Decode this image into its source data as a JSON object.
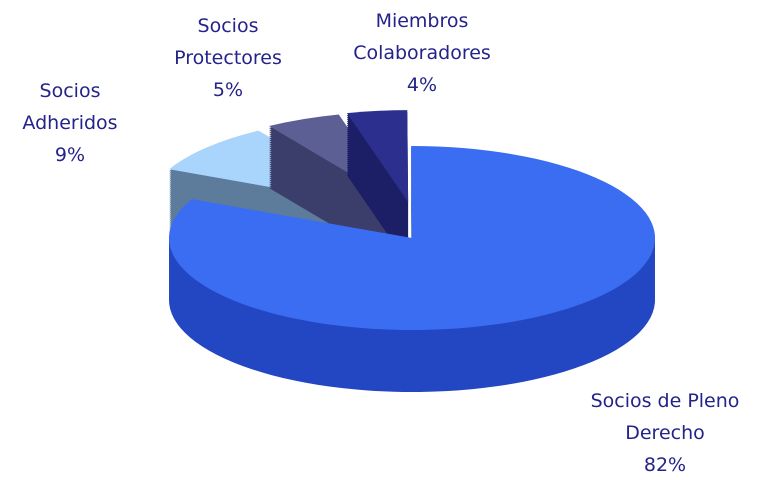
{
  "chart_data": {
    "type": "pie",
    "categories": [
      "Socios Adheridos",
      "Socios Protectores",
      "Miembros Colaboradores",
      "Socios de Pleno Derecho"
    ],
    "values": [
      9,
      5,
      4,
      82
    ],
    "value_labels": [
      "9%",
      "5%",
      "4%",
      "82%"
    ],
    "colors": [
      "#a9d4fb",
      "#5b5f94",
      "#2c2f8e",
      "#3a6df2"
    ],
    "side_colors": [
      "#5d7c9c",
      "#3b3d6a",
      "#1c1e66",
      "#2346c2"
    ]
  }
}
